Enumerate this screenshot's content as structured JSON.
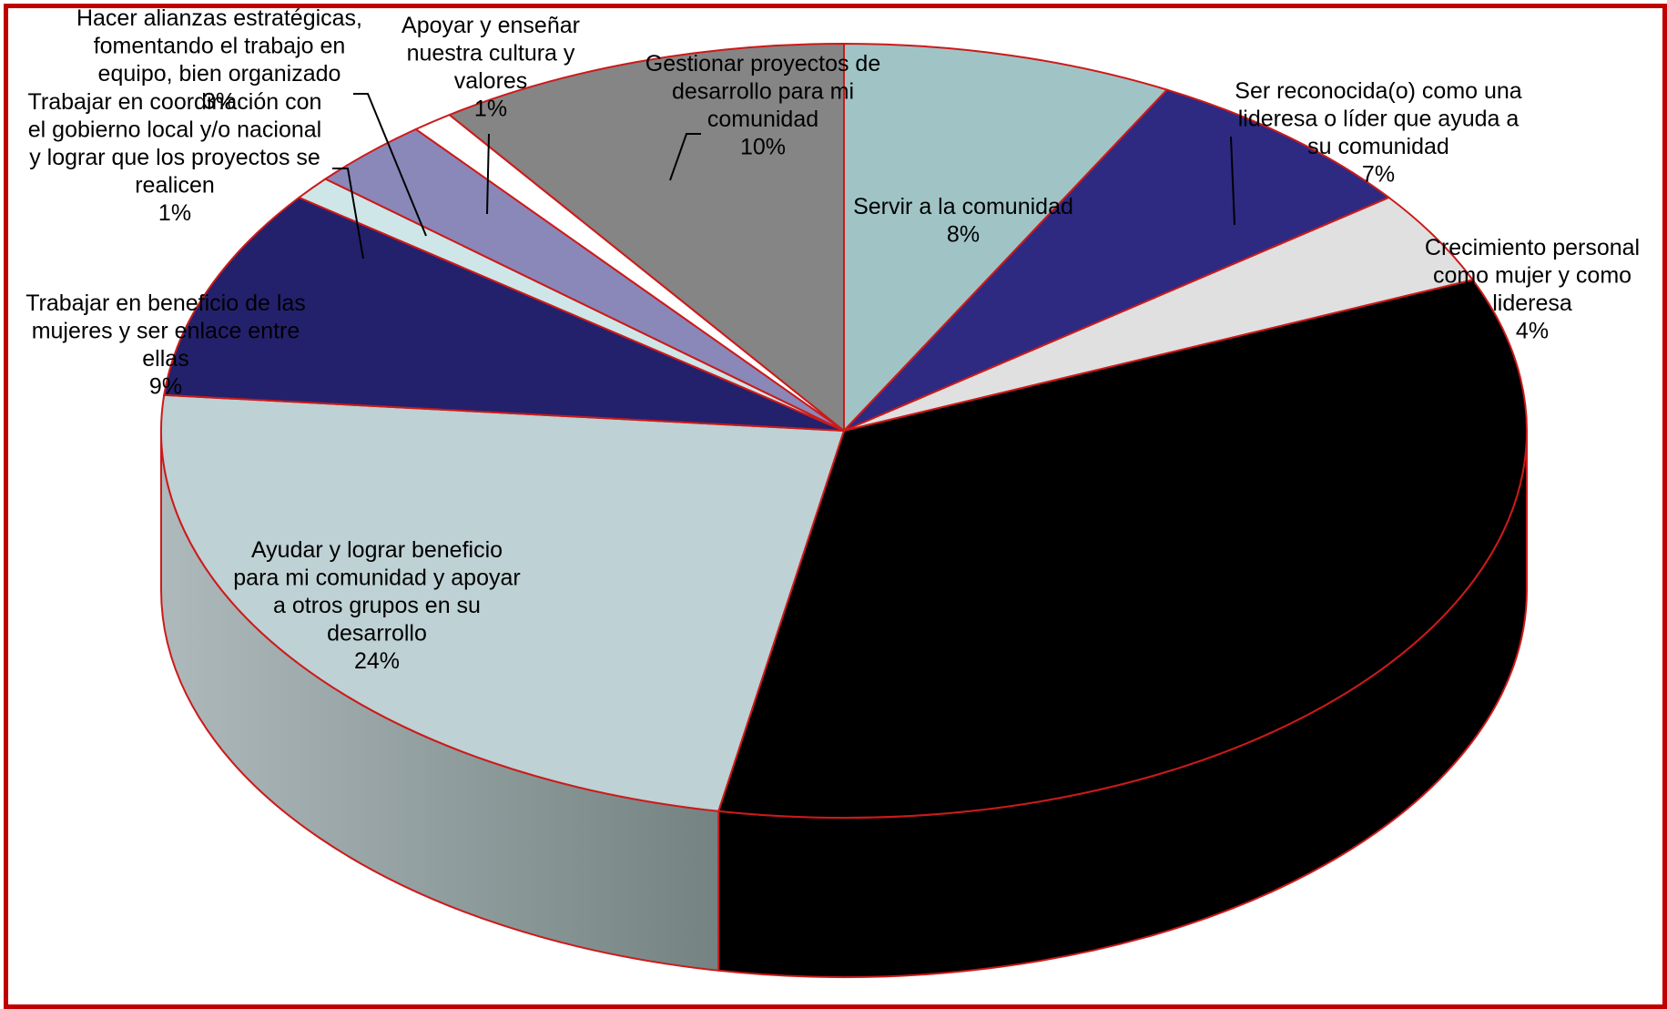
{
  "chart_data": {
    "type": "pie",
    "style": "3d",
    "frame_color": "#c00000",
    "edge_color": "#cc1a1a",
    "slices": [
      {
        "label": "Servir a la comunidad",
        "value": 8,
        "pct": "8%",
        "color": "#a0c4c6"
      },
      {
        "label": "Ser reconocida(o) como una lideresa o líder que ayuda a su comunidad",
        "value": 7,
        "pct": "7%",
        "color": "#2e2a82"
      },
      {
        "label": "Crecimiento personal como mujer y como lideresa",
        "value": 4,
        "pct": "4%",
        "color": "#e0e0e0"
      },
      {
        "label": "",
        "value": 35,
        "pct": "",
        "color": "#000000"
      },
      {
        "label": "Ayudar y lograr beneficio para mi comunidad y apoyar a otros grupos en su desarrollo",
        "value": 24,
        "pct": "24%",
        "color": "#bed1d4"
      },
      {
        "label": "Trabajar en beneficio de las mujeres y ser enlace entre ellas",
        "value": 9,
        "pct": "9%",
        "color": "#23216c"
      },
      {
        "label": "Trabajar en coordinación con el gobierno local y/o nacional y lograr que los proyectos se realicen",
        "value": 1,
        "pct": "1%",
        "color": "#cfe6e8"
      },
      {
        "label": "Hacer alianzas estratégicas, fomentando el trabajo en equipo, bien organizado",
        "value": 3,
        "pct": "3%",
        "color": "#8a88b8"
      },
      {
        "label": "Apoyar y enseñar nuestra cultura y valores",
        "value": 1,
        "pct": "1%",
        "color": "#ffffff"
      },
      {
        "label": "Gestionar proyectos de desarrollo para mi comunidad",
        "value": 10,
        "pct": "10%",
        "color": "#858585"
      }
    ]
  },
  "labels": {
    "servir": {
      "lines": [
        "Servir a la comunidad"
      ],
      "pct": "8%"
    },
    "reconocida": {
      "lines": [
        "Ser reconocida(o) como una",
        "lideresa o líder que ayuda a",
        "su comunidad"
      ],
      "pct": "7%"
    },
    "crecimiento": {
      "lines": [
        "Crecimiento personal",
        "como mujer y como",
        "lideresa"
      ],
      "pct": "4%"
    },
    "ayudar": {
      "lines": [
        "Ayudar y lograr beneficio",
        "para mi comunidad y apoyar",
        "a otros grupos en su",
        "desarrollo"
      ],
      "pct": "24%"
    },
    "mujeres": {
      "lines": [
        "Trabajar en beneficio de las",
        "mujeres y ser enlace entre",
        "ellas"
      ],
      "pct": "9%"
    },
    "coordinacion": {
      "lines": [
        "Trabajar en coordinación con",
        "el gobierno local y/o nacional",
        "y lograr que los proyectos se",
        "realicen"
      ],
      "pct": "1%"
    },
    "alianzas": {
      "lines": [
        "Hacer alianzas estratégicas,",
        "fomentando el trabajo en",
        "equipo, bien organizado"
      ],
      "pct": "3%"
    },
    "cultura": {
      "lines": [
        "Apoyar y enseñar",
        "nuestra cultura y",
        "valores"
      ],
      "pct": "1%"
    },
    "gestionar": {
      "lines": [
        "Gestionar proyectos de",
        "desarrollo para mi",
        "comunidad"
      ],
      "pct": "10%"
    }
  }
}
